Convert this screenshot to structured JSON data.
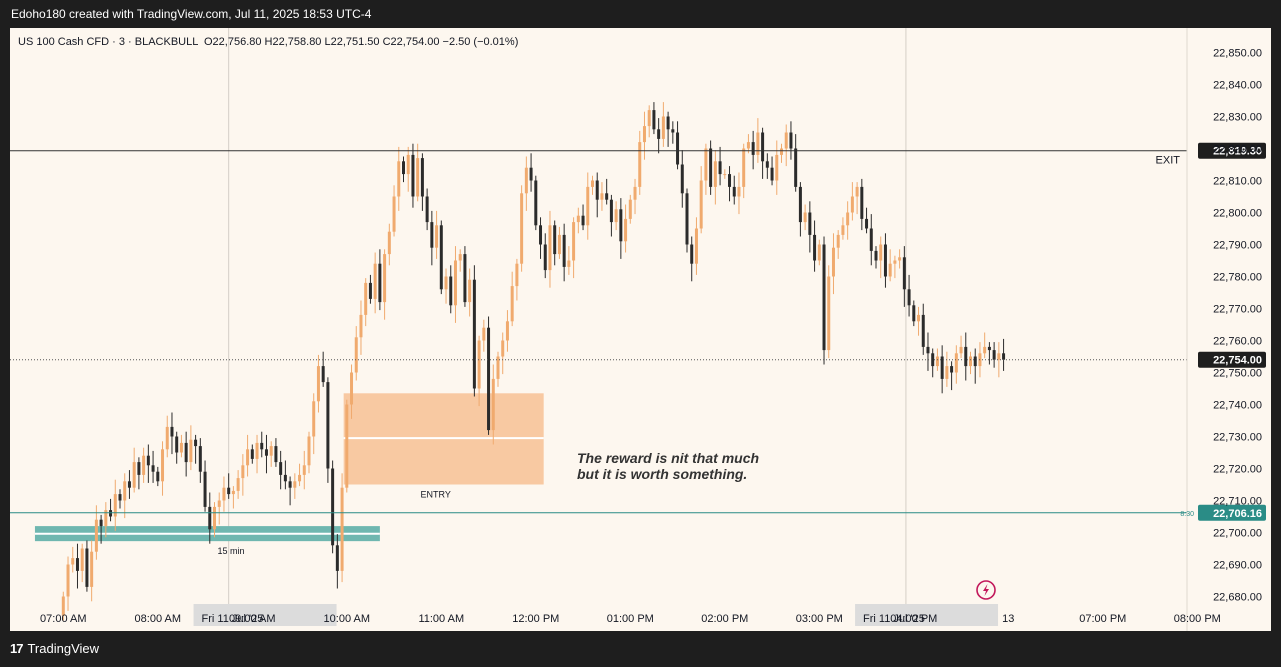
{
  "header": {
    "attribution": "Edoho180 created with TradingView.com, Jul 11, 2025 18:53 UTC-4"
  },
  "legend": {
    "symbol": "US 100 Cash CFD · 3 · BLACKBULL",
    "ohlc": "O22,756.80  H22,758.80  L22,751.50  C22,754.00  −2.50 (−0.01%)"
  },
  "footer": {
    "brand": "TradingView"
  },
  "colors": {
    "up": "#f0aa6e",
    "down": "#2b2b2b",
    "support_zone": "#6fb7b0",
    "entry_zone": "#f8c9a2",
    "background": "#fdf7ef",
    "teal": "#2a8c86"
  },
  "chart_data": {
    "type": "candlestick",
    "ylim": [
      22671,
      22855
    ],
    "y_ticks": [
      22850,
      22840,
      22830,
      22820,
      22810,
      22800,
      22790,
      22780,
      22770,
      22760,
      22750,
      22740,
      22730,
      22720,
      22710,
      22700,
      22690,
      22680
    ],
    "y_tick_labels": [
      "22,850.00",
      "22,840.00",
      "22,830.00",
      "22,820.00",
      "22,810.00",
      "22,800.00",
      "22,790.00",
      "22,780.00",
      "22,770.00",
      "22,760.00",
      "22,750.00",
      "22,740.00",
      "22,730.00",
      "22,720.00",
      "22,710.00",
      "22,700.00",
      "22,690.00",
      "22,680.00"
    ],
    "x_ticks": [
      {
        "label": "07:00 AM",
        "t": 0
      },
      {
        "label": "08:00 AM",
        "t": 60
      },
      {
        "label": "09:00 AM",
        "t": 120
      },
      {
        "label": "10:00 AM",
        "t": 180
      },
      {
        "label": "11:00 AM",
        "t": 240
      },
      {
        "label": "12:00 PM",
        "t": 300
      },
      {
        "label": "01:00 PM",
        "t": 360
      },
      {
        "label": "02:00 PM",
        "t": 420
      },
      {
        "label": "03:00 PM",
        "t": 480
      },
      {
        "label": "04:00 PM",
        "t": 540
      },
      {
        "label": "13",
        "t": 600
      },
      {
        "label": "07:00 PM",
        "t": 660
      },
      {
        "label": "08:00 PM",
        "t": 720
      }
    ],
    "date_badges": [
      {
        "label": "Fri 11 Jul '25",
        "t": 110
      },
      {
        "label": "Fri 11 Jul '25",
        "t": 530
      }
    ],
    "vertical_lines_t": [
      105,
      535
    ],
    "bar_interval_min": 3,
    "closes": [
      22680,
      22690,
      22692,
      22688,
      22695,
      22683,
      22694,
      22704,
      22702,
      22707,
      22705,
      22712,
      22710,
      22716,
      22714,
      22722,
      22718,
      22724,
      22721,
      22719,
      22716,
      22726,
      22733,
      22730,
      22725,
      22728,
      22722,
      22729,
      22727,
      22719,
      22708,
      22701,
      22708,
      22710,
      22714,
      22712,
      22713,
      22717,
      22721,
      22726,
      22723,
      22728,
      22726,
      22724,
      22727,
      22722,
      22718,
      22716,
      22714,
      22716,
      22718,
      22721,
      22730,
      22741,
      22752,
      22747,
      22720,
      22696,
      22688,
      22714,
      22740,
      22750,
      22761,
      22768,
      22778,
      22773,
      22784,
      22772,
      22787,
      22794,
      22805,
      22816,
      22812,
      22818,
      22805,
      22817,
      22805,
      22797,
      22789,
      22796,
      22776,
      22780,
      22771,
      22785,
      22787,
      22772,
      22779,
      22745,
      22760,
      22764,
      22732,
      22748,
      22755,
      22760,
      22766,
      22777,
      22784,
      22806,
      22814,
      22810,
      22796,
      22790,
      22782,
      22796,
      22787,
      22793,
      22783,
      22785,
      22797,
      22799,
      22796,
      22808,
      22810,
      22804,
      22806,
      22804,
      22797,
      22801,
      22791,
      22798,
      22804,
      22808,
      22822,
      22827,
      22832,
      22826,
      22823,
      22830,
      22826,
      22825,
      22815,
      22806,
      22790,
      22784,
      22795,
      22810,
      22820,
      22808,
      22816,
      22812,
      22812,
      22808,
      22805,
      22808,
      22820,
      22822,
      22818,
      22825,
      22816,
      22814,
      22810,
      22818,
      22820,
      22825,
      22820,
      22808,
      22797,
      22800,
      22793,
      22785,
      22790,
      22757,
      22780,
      22789,
      22793,
      22796,
      22800,
      22805,
      22808,
      22798,
      22795,
      22788,
      22785,
      22790,
      22780,
      22784,
      22785,
      22786,
      22776,
      22771,
      22766,
      22768,
      22758,
      22756,
      22752,
      22755,
      22748,
      22752,
      22750,
      22756,
      22758,
      22752,
      22755,
      22752,
      22756,
      22758,
      22757,
      22754,
      22756,
      22754
    ],
    "annotations": [
      {
        "kind": "horizontal_line",
        "price": 22819.3,
        "label": "EXIT",
        "price_label": "22,819.30"
      },
      {
        "kind": "horizontal_line",
        "price": 22706.16,
        "label": "8:30",
        "price_label": "22,706.16"
      },
      {
        "kind": "last_price",
        "price": 22754.0,
        "price_label": "22,754.00"
      },
      {
        "kind": "zone",
        "name": "entry",
        "t0": 178,
        "t1": 305,
        "y_top": 22743.5,
        "y_bottom": 22715.0,
        "midline": 22729.5,
        "label": "ENTRY"
      },
      {
        "kind": "zone",
        "name": "support",
        "t0": -18,
        "t1": 201,
        "y_top": 22702.0,
        "y_bottom": 22697.3,
        "midline": 22699.6,
        "label": "15 min"
      }
    ],
    "note_lines": [
      "The reward is nit that much",
      "but it is worth something."
    ]
  }
}
